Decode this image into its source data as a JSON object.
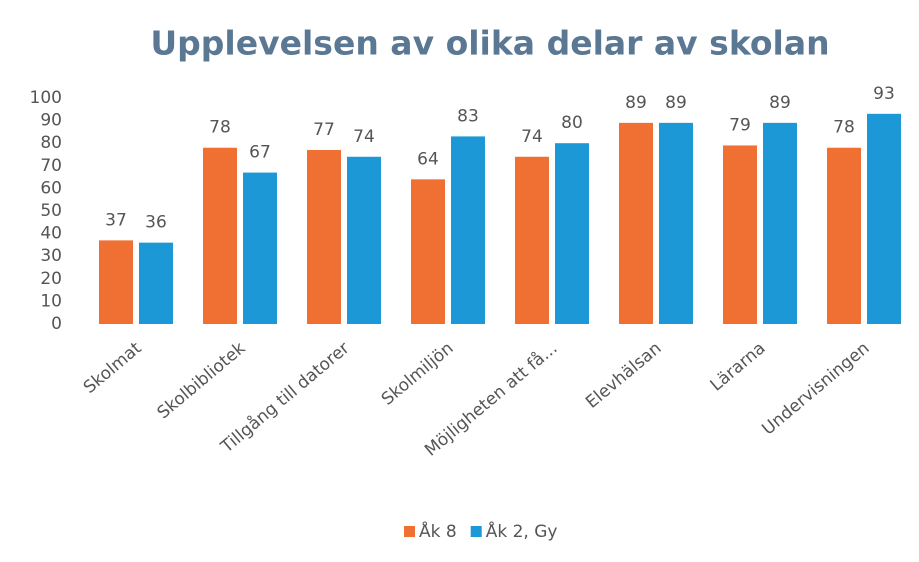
{
  "chart_data": {
    "type": "bar",
    "title": "Upplevelsen av olika delar av skolan",
    "categories": [
      "Skolmat",
      "Skolbibliotek",
      "Tillgång till datorer",
      "Skolmiljön",
      "Möjligheten att få...",
      "Elevhälsan",
      "Lärarna",
      "Undervisningen"
    ],
    "series": [
      {
        "name": "Åk 8",
        "color": "#f07033",
        "values": [
          37,
          78,
          77,
          64,
          74,
          89,
          79,
          78
        ]
      },
      {
        "name": "Åk 2, Gy",
        "color": "#1b98d5",
        "values": [
          36,
          67,
          74,
          83,
          80,
          89,
          89,
          93
        ]
      }
    ],
    "ylim": [
      0,
      100
    ],
    "yticks": [
      0,
      10,
      20,
      30,
      40,
      50,
      60,
      70,
      80,
      90,
      100
    ],
    "grid": false,
    "legend": "bottom"
  }
}
